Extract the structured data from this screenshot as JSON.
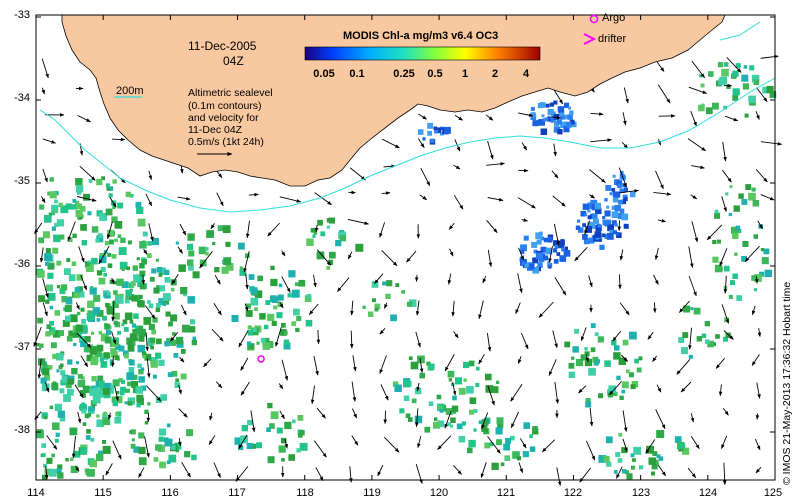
{
  "map": {
    "date": "11-Dec-2005",
    "time": "04Z",
    "colorbar_title": "MODIS Chl-a mg/m3 v6.4 OC3",
    "colorbar_ticks": [
      "0.05",
      "0.1",
      "0.25",
      "0.5",
      "1",
      "2",
      "4"
    ],
    "legend": {
      "argo_label": "Argo",
      "drifter_label": "drifter",
      "isobath_label": "200m"
    },
    "annotation_lines": [
      "Altimetric sealevel",
      "(0.1m contours)",
      "and velocity for",
      "11-Dec 04Z",
      "0.5m/s (1kt 24h)"
    ],
    "x_ticks": [
      "114",
      "115",
      "116",
      "117",
      "118",
      "119",
      "120",
      "121",
      "122",
      "123",
      "124",
      "125"
    ],
    "y_ticks": [
      "-33",
      "-34",
      "-35",
      "-36",
      "-37",
      "-38"
    ],
    "credit": "© IMOS 21-May-2013 17:36:32 Hobart time",
    "colors": {
      "land": "#f8c8a0",
      "isobath": "#33dddd",
      "argo_marker": "#ff00ff",
      "drifter_marker": "#ff00ff"
    },
    "argo_float": {
      "lon": 117.35,
      "lat": -37.12
    }
  }
}
